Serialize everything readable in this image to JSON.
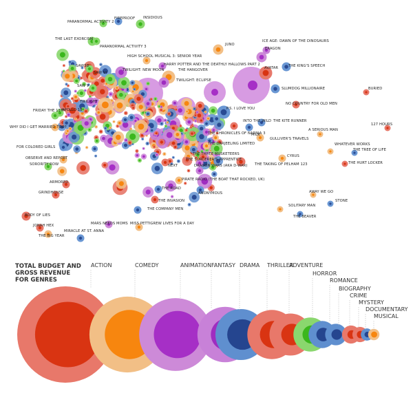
{
  "chart_data": [
    {
      "type": "scatter",
      "title": "",
      "xlabel": "",
      "ylabel": "",
      "labeled_films": [
        {
          "name": "PARANORMAL ACTIVITY 2",
          "genre": "Horror"
        },
        {
          "name": "FIREPROOF",
          "genre": "Drama"
        },
        {
          "name": "INSIDIOUS",
          "genre": "Horror"
        },
        {
          "name": "THE LAST EXORCISM",
          "genre": "Horror"
        },
        {
          "name": "PARANORMAL ACTIVITY 3",
          "genre": "Horror"
        },
        {
          "name": "SAW3D",
          "genre": "Horror"
        },
        {
          "name": "HIGH SCHOOL MUSICAL 3: SENIOR YEAR",
          "genre": "Musical"
        },
        {
          "name": "HARRY POTTER AND THE DEATHLY HALLOWS PART 2",
          "genre": "Fantasy"
        },
        {
          "name": "TWILIGHT: NEW MOON",
          "genre": "Fantasy"
        },
        {
          "name": "SAW VI",
          "genre": "Horror"
        },
        {
          "name": "THE HANGOVER",
          "genre": "Comedy"
        },
        {
          "name": "TWILIGHT: ECLIPSE",
          "genre": "Fantasy"
        },
        {
          "name": "SAW V",
          "genre": "Horror"
        },
        {
          "name": "TWILIGHT",
          "genre": "Fantasy"
        },
        {
          "name": "APOLLO 18",
          "genre": "Horror"
        },
        {
          "name": "FRIDAY THE 13TH",
          "genre": "Horror"
        },
        {
          "name": "WHY DID I GET MARRIED TOO?",
          "genre": "Comedy"
        },
        {
          "name": "FOR COLORED GIRLS",
          "genre": "Drama"
        },
        {
          "name": "OBSERVE AND REPORT",
          "genre": "Comedy"
        },
        {
          "name": "SORORITY ROW",
          "genre": "Horror"
        },
        {
          "name": "ARMORED",
          "genre": "Action"
        },
        {
          "name": "GRINDHOUSE",
          "genre": "Action"
        },
        {
          "name": "BODY OF LIES",
          "genre": "Action"
        },
        {
          "name": "JONAH HEX",
          "genre": "Action"
        },
        {
          "name": "THE BIG YEAR",
          "genre": "Comedy"
        },
        {
          "name": "MIRACLE AT ST. ANNA",
          "genre": "Drama"
        },
        {
          "name": "MARS NEEDS MOMS",
          "genre": "Animation"
        },
        {
          "name": "MISS PETTIGREW LIVES FOR A DAY",
          "genre": "Comedy"
        },
        {
          "name": "THE COMPANY MEN",
          "genre": "Drama"
        },
        {
          "name": "THE INVASION",
          "genre": "Thriller"
        },
        {
          "name": "THE ROAD",
          "genre": "Drama"
        },
        {
          "name": "PIRATE RADIO (THE BOAT THAT ROCKED, UK)",
          "genre": "Comedy"
        },
        {
          "name": "ANONYMOUS",
          "genre": "Drama"
        },
        {
          "name": "NEXT",
          "genre": "Action"
        },
        {
          "name": "DRAGON WARS (AKA D-WAR)",
          "genre": "Fantasy"
        },
        {
          "name": "THE SORCERER'S APPRENTICE",
          "genre": "Fantasy"
        },
        {
          "name": "THE THREE MUSKETEERS",
          "genre": "Action"
        },
        {
          "name": "THE DARJEELING LIMITED",
          "genre": "Comedy"
        },
        {
          "name": "THE CHRONICLES OF NARNIA 3",
          "genre": "Fantasy"
        },
        {
          "name": "MILK",
          "genre": "Biography"
        },
        {
          "name": "GULLIVER'S TRAVELS",
          "genre": "Comedy"
        },
        {
          "name": "THE TAKING OF PELHAM 123",
          "genre": "Thriller"
        },
        {
          "name": "CYRUS",
          "genre": "Comedy"
        },
        {
          "name": "INTO THE WILD",
          "genre": "Adventure"
        },
        {
          "name": "THE KITE RUNNER",
          "genre": "Drama"
        },
        {
          "name": "P.S. I LOVE YOU",
          "genre": "Drama"
        },
        {
          "name": "NO COUNTRY FOR OLD MEN",
          "genre": "Crime"
        },
        {
          "name": "SLUMDOG MILLIONAIRE",
          "genre": "Drama"
        },
        {
          "name": "AVATAR",
          "genre": "Action"
        },
        {
          "name": "THE KING'S SPEECH",
          "genre": "Drama"
        },
        {
          "name": "ICE AGE: DAWN OF THE DINOSAURS",
          "genre": "Animation"
        },
        {
          "name": "ERAGON",
          "genre": "Fantasy"
        },
        {
          "name": "JUNO",
          "genre": "Comedy"
        },
        {
          "name": "BURIED",
          "genre": "Thriller"
        },
        {
          "name": "127 HOURS",
          "genre": "Adventure"
        },
        {
          "name": "A SERIOUS MAN",
          "genre": "Comedy"
        },
        {
          "name": "WHATEVER WORKS",
          "genre": "Comedy"
        },
        {
          "name": "THE TREE OF LIFE",
          "genre": "Drama"
        },
        {
          "name": "THE HURT LOCKER",
          "genre": "Thriller"
        },
        {
          "name": "AWAY WE GO",
          "genre": "Comedy"
        },
        {
          "name": "STONE",
          "genre": "Drama"
        },
        {
          "name": "SOLITARY MAN",
          "genre": "Comedy"
        },
        {
          "name": "THE BEAVER",
          "genre": "Drama"
        }
      ]
    },
    {
      "type": "bubble",
      "title": "TOTAL BUDGET AND GROSS REVENUE FOR GENRES",
      "categories": [
        "ACTION",
        "COMEDY",
        "ANIMATION",
        "FANTASY",
        "DRAMA",
        "THRILLER",
        "ADVENTURE",
        "HORROR",
        "ROMANCE",
        "BIOGRAPHY",
        "CRIME",
        "MYSTERY",
        "DOCUMENTARY",
        "MUSICAL"
      ],
      "series": [
        {
          "name": "Gross revenue (outer circle)",
          "values": [
            100,
            62,
            57,
            33,
            28,
            26,
            19,
            12.5,
            8,
            5,
            3.5,
            2.5,
            1.6,
            1.4
          ]
        },
        {
          "name": "Budget (inner circle)",
          "values": [
            46,
            26,
            24,
            11,
            10,
            8,
            5,
            3.6,
            2,
            1.2,
            0.8,
            0.6,
            0.35,
            0.4
          ]
        }
      ],
      "colors": {
        "ACTION": [
          "#e8786a",
          "#d93412"
        ],
        "COMEDY": [
          "#f2bf86",
          "#f7860f"
        ],
        "ANIMATION": [
          "#cd8ad8",
          "#a62fc6"
        ],
        "FANTASY": [
          "#c881d8",
          "#9f2dc0"
        ],
        "DRAMA": [
          "#5f8fcf",
          "#25458f"
        ],
        "THRILLER": [
          "#e8786a",
          "#d93412"
        ],
        "ADVENTURE": [
          "#e8786a",
          "#d93412"
        ],
        "HORROR": [
          "#8ad76e",
          "#3bb71d"
        ],
        "ROMANCE": [
          "#5f8fcf",
          "#25458f"
        ],
        "BIOGRAPHY": [
          "#5f8fcf",
          "#25458f"
        ],
        "CRIME": [
          "#e8786a",
          "#d93412"
        ],
        "MYSTERY": [
          "#e8786a",
          "#d93412"
        ],
        "DOCUMENTARY": [
          "#5f8fcf",
          "#25458f"
        ],
        "MUSICAL": [
          "#f2bf86",
          "#f7860f"
        ]
      }
    }
  ]
}
